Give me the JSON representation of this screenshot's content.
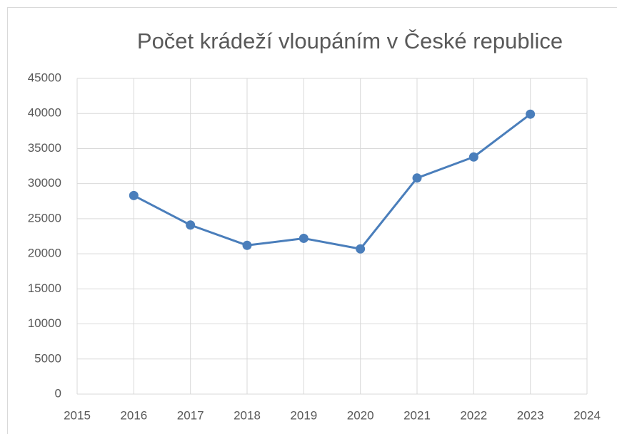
{
  "chart_data": {
    "type": "line",
    "title": "Počet krádeží vloupáním v České republice",
    "x": [
      2016,
      2017,
      2018,
      2019,
      2020,
      2021,
      2022,
      2023
    ],
    "series": [
      {
        "name": "Počet krádeží vloupáním",
        "color": "#4a7ebb",
        "values": [
          28300,
          24100,
          21200,
          22200,
          20700,
          30800,
          33800,
          39900
        ]
      }
    ],
    "xlim": [
      2015,
      2024
    ],
    "xticks": [
      2015,
      2016,
      2017,
      2018,
      2019,
      2020,
      2021,
      2022,
      2023,
      2024
    ],
    "ylim": [
      0,
      45000
    ],
    "yticks": [
      0,
      5000,
      10000,
      15000,
      20000,
      25000,
      30000,
      35000,
      40000,
      45000
    ],
    "grid": true
  }
}
